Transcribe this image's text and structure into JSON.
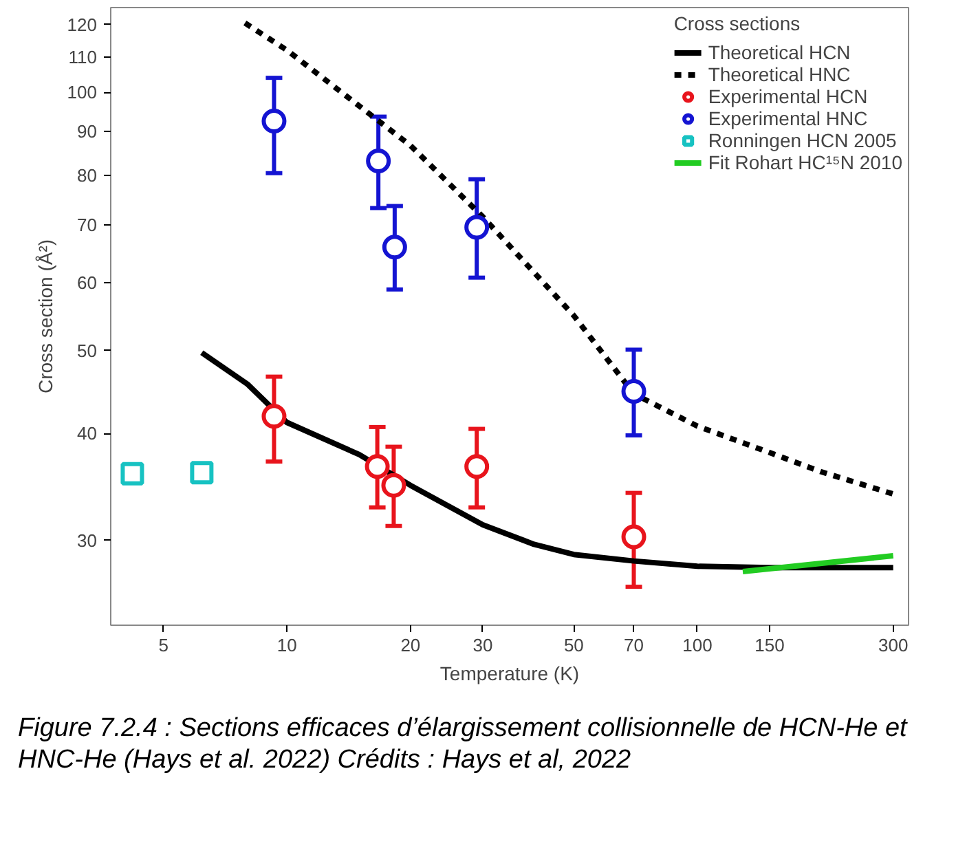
{
  "chart_data": {
    "type": "line",
    "xlabel": "Temperature (K)",
    "ylabel": "Cross section (Å²)",
    "legend_title": "Cross sections",
    "log": "xy",
    "xlim": [
      3.72,
      327
    ],
    "ylim": [
      23.9,
      125.6
    ],
    "xticks": [
      5,
      10,
      20,
      30,
      50,
      70,
      100,
      150,
      300
    ],
    "yticks": [
      30,
      40,
      50,
      60,
      70,
      80,
      90,
      100,
      110,
      120
    ],
    "grid": false,
    "legend": "top right",
    "series": [
      {
        "name": "Theoretical HCN",
        "line_style": "solid",
        "color": "#000000",
        "x": [
          6.2,
          8,
          10,
          15,
          20,
          30,
          40,
          50,
          70,
          100,
          150,
          300
        ],
        "values": [
          49.7,
          45.7,
          41.2,
          37.8,
          34.8,
          31.3,
          29.7,
          28.9,
          28.4,
          28.0,
          27.9,
          27.9
        ]
      },
      {
        "name": "Theoretical HNC",
        "line_style": "dashed",
        "color": "#000000",
        "x": [
          7.9,
          10,
          20,
          30,
          50,
          70,
          100,
          150,
          200,
          300
        ],
        "values": [
          120.5,
          112,
          86.7,
          71.6,
          54.9,
          44.5,
          40.8,
          38.0,
          36.1,
          34.0
        ]
      },
      {
        "name": "Experimental HCN",
        "type": "scatter",
        "marker": "circle",
        "color": "#e8141c",
        "x": [
          9.3,
          16.6,
          18.2,
          29,
          70
        ],
        "values": [
          41.9,
          36.6,
          34.8,
          36.6,
          30.3
        ],
        "errors": [
          [
            37.1,
            46.6
          ],
          [
            32.8,
            40.7
          ],
          [
            31.2,
            38.6
          ],
          [
            32.8,
            40.5
          ],
          [
            26.5,
            34.1
          ]
        ]
      },
      {
        "name": "Experimental HNC",
        "type": "scatter",
        "marker": "circle",
        "color": "#1414d2",
        "x": [
          9.3,
          16.7,
          18.3,
          29,
          70
        ],
        "values": [
          92.6,
          83.2,
          66,
          69.6,
          44.8
        ],
        "errors": [
          [
            80.5,
            104
          ],
          [
            73.3,
            93.7
          ],
          [
            58.9,
            73.7
          ],
          [
            60.8,
            79.2
          ],
          [
            39.8,
            50.1
          ]
        ]
      },
      {
        "name": "Ronningen HCN 2005",
        "type": "scatter",
        "marker": "square",
        "color": "#17c2c2",
        "x": [
          4.2,
          6.2
        ],
        "values": [
          35.9,
          36.0
        ]
      },
      {
        "name": "Fit Rohart HC¹⁵N 2010",
        "line_style": "solid",
        "color": "#22cc22",
        "x": [
          129,
          300
        ],
        "values": [
          27.6,
          28.8
        ]
      }
    ],
    "annotations": [
      "Figure 7.2.4 : Sections efficaces d’élargissement collisionnelle de HCN-He et HNC-He (Hays et al. 2022) Crédits : Hays et al, 2022"
    ]
  }
}
